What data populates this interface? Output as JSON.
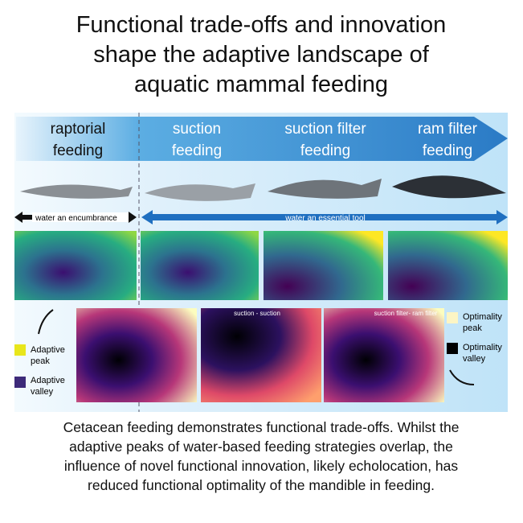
{
  "header": {
    "title_lines": [
      "Functional trade-offs and innovation",
      "shape the adaptive landscape of",
      "aquatic mammal feeding"
    ]
  },
  "modes": [
    [
      "raptorial",
      "feeding"
    ],
    [
      "suction",
      "feeding"
    ],
    [
      "suction filter",
      "feeding"
    ],
    [
      "ram  filter",
      "feeding"
    ]
  ],
  "banners": [
    "water an encumbrance",
    "water an essential tool"
  ],
  "panels": [
    "suction - suction",
    "suction filter- ram filter"
  ],
  "legend": {
    "adaptive_peak": [
      "Adaptive",
      "peak"
    ],
    "adaptive_valley": [
      "Adaptive",
      "valley"
    ],
    "optimality_peak": [
      "Optimality",
      "peak"
    ],
    "optimality_valley": [
      "Optimality",
      "valley"
    ]
  },
  "caption_lines": [
    "Cetacean feeding demonstrates functional trade-offs. Whilst the",
    "adaptive peaks of water-based feeding strategies overlap, the",
    "influence of novel functional innovation, likely echolocation, has",
    "reduced functional optimality of the mandible in feeding."
  ]
}
